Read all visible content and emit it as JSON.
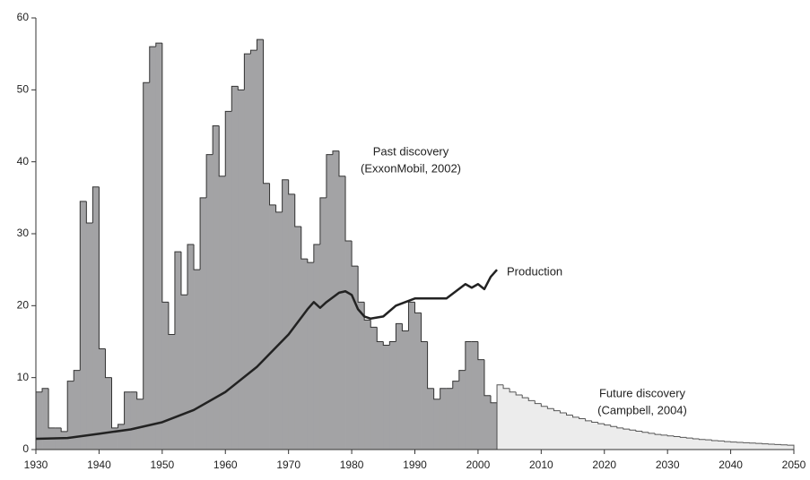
{
  "chart_data": {
    "type": "step-histogram",
    "xlim": [
      1930,
      2050
    ],
    "xticks": [
      1930,
      1940,
      1950,
      1960,
      1970,
      1980,
      1990,
      2000,
      2010,
      2020,
      2030,
      2040,
      2050
    ],
    "ylim": [
      0,
      60
    ],
    "yticks": [
      0,
      10,
      20,
      30,
      40,
      50,
      60
    ],
    "annotations": [
      "Past discovery",
      "(ExxonMobil, 2002)",
      "Production",
      "Future discovery",
      "(Campbell, 2004)"
    ],
    "series": [
      {
        "kind": "bars",
        "color": "#a3a3a5",
        "x": [
          1930,
          1931,
          1932,
          1933,
          1934,
          1935,
          1936,
          1937,
          1938,
          1939,
          1940,
          1941,
          1942,
          1943,
          1944,
          1945,
          1946,
          1947,
          1948,
          1949,
          1950,
          1951,
          1952,
          1953,
          1954,
          1955,
          1956,
          1957,
          1958,
          1959,
          1960,
          1961,
          1962,
          1963,
          1964,
          1965,
          1966,
          1967,
          1968,
          1969,
          1970,
          1971,
          1972,
          1973,
          1974,
          1975,
          1976,
          1977,
          1978,
          1979,
          1980,
          1981,
          1982,
          1983,
          1984,
          1985,
          1986,
          1987,
          1988,
          1989,
          1990,
          1991,
          1992,
          1993,
          1994,
          1995,
          1996,
          1997,
          1998,
          1999,
          2000,
          2001,
          2002
        ],
        "values": [
          8,
          8.5,
          3,
          3,
          2.5,
          9.5,
          11,
          34.5,
          31.5,
          36.5,
          14,
          10,
          3,
          3.5,
          8,
          8,
          7,
          51,
          56,
          56.5,
          20.5,
          16,
          27.5,
          21.5,
          28.5,
          25,
          35,
          41,
          45,
          38,
          47,
          50.5,
          50,
          55,
          55.5,
          57,
          37,
          34,
          33,
          37.5,
          35.5,
          31,
          26.5,
          26,
          28.5,
          35,
          41,
          41.5,
          38,
          29,
          25.5,
          20.5,
          18,
          17,
          15,
          14.5,
          15,
          17.5,
          16.5,
          20.5,
          19,
          15,
          8.5,
          7,
          8.5,
          8.5,
          9.5,
          11,
          15,
          15,
          12.5,
          7.5,
          6.5
        ]
      },
      {
        "kind": "bars",
        "color": "#ececec",
        "x": [
          2003,
          2004,
          2005,
          2006,
          2007,
          2008,
          2009,
          2010,
          2011,
          2012,
          2013,
          2014,
          2015,
          2016,
          2017,
          2018,
          2019,
          2020,
          2021,
          2022,
          2023,
          2024,
          2025,
          2026,
          2027,
          2028,
          2029,
          2030,
          2031,
          2032,
          2033,
          2034,
          2035,
          2036,
          2037,
          2038,
          2039,
          2040,
          2041,
          2042,
          2043,
          2044,
          2045,
          2046,
          2047,
          2048,
          2049
        ],
        "values": [
          9,
          8.5,
          8.0,
          7.6,
          7.2,
          6.8,
          6.4,
          6.0,
          5.7,
          5.4,
          5.1,
          4.8,
          4.5,
          4.3,
          4.0,
          3.8,
          3.6,
          3.4,
          3.2,
          3.0,
          2.85,
          2.7,
          2.55,
          2.4,
          2.25,
          2.1,
          2.0,
          1.9,
          1.8,
          1.7,
          1.6,
          1.5,
          1.4,
          1.35,
          1.25,
          1.2,
          1.1,
          1.05,
          1.0,
          0.95,
          0.9,
          0.85,
          0.8,
          0.75,
          0.7,
          0.65,
          0.6
        ]
      },
      {
        "kind": "line",
        "color": "#222222",
        "x": [
          1930,
          1935,
          1940,
          1945,
          1950,
          1955,
          1960,
          1965,
          1970,
          1973,
          1974,
          1975,
          1976,
          1978,
          1979,
          1980,
          1981,
          1982,
          1983,
          1985,
          1987,
          1990,
          1995,
          1998,
          1999,
          2000,
          2001,
          2002,
          2003
        ],
        "values": [
          1.5,
          1.6,
          2.2,
          2.8,
          3.8,
          5.5,
          8,
          11.5,
          16,
          19.5,
          20.5,
          19.7,
          20.5,
          21.8,
          22,
          21.5,
          19.5,
          18.5,
          18.2,
          18.5,
          20,
          21,
          21,
          23,
          22.5,
          23,
          22.3,
          24,
          25
        ]
      }
    ]
  }
}
